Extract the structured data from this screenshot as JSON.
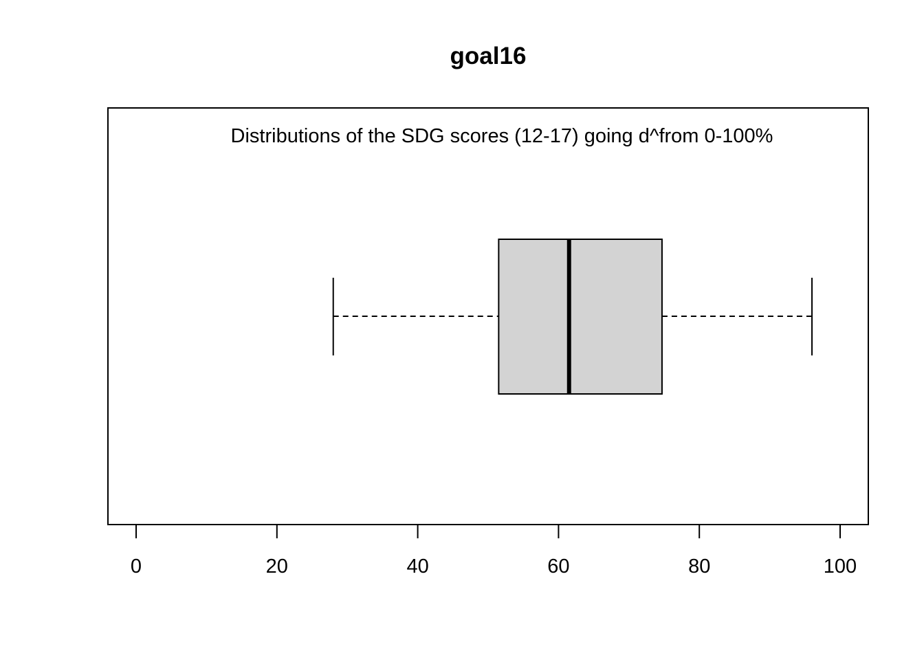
{
  "chart_data": {
    "type": "boxplot",
    "orientation": "horizontal",
    "title": "goal16",
    "annotation": "Distributions of the SDG scores (12-17) going d^from 0-100%",
    "xlabel": "",
    "ylabel": "",
    "xlim": [
      0,
      100
    ],
    "x_ticks": [
      0,
      20,
      40,
      60,
      80,
      100
    ],
    "x_tick_labels": [
      "0",
      "20",
      "40",
      "60",
      "80",
      "100"
    ],
    "box": {
      "whisker_low": 28,
      "q1": 51.5,
      "median": 61.5,
      "q3": 74.7,
      "whisker_high": 96
    },
    "box_fill": "#d3d3d3",
    "line_color": "#000000",
    "grid": false,
    "legend": "none"
  }
}
